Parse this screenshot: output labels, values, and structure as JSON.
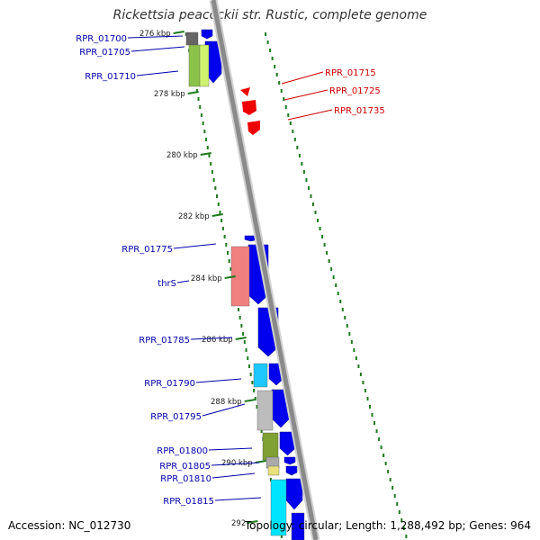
{
  "title": "Rickettsia peacockii str. Rustic, complete genome",
  "accession": "Accession: NC_012730",
  "summary": "Topology: circular; Length: 1,288,492 bp; Genes: 964",
  "colors": {
    "backbone": "#8a8a8a",
    "forward": "#0000ee",
    "reverse": "#ee0000",
    "label_forward": "#0000aa",
    "label_reverse": "#cc0000",
    "tick": "#1e7a1e"
  },
  "scale_ticks": [
    "276 kbp",
    "278 kbp",
    "280 kbp",
    "282 kbp",
    "284 kbp",
    "286 kbp",
    "288 kbp",
    "290 kbp",
    "292"
  ],
  "gene_labels_forward": [
    "RPR_01700",
    "RPR_01705",
    "RPR_01710",
    "RPR_01775",
    "thrS",
    "RPR_01785",
    "RPR_01790",
    "RPR_01795",
    "RPR_01800",
    "RPR_01805",
    "RPR_01810",
    "RPR_01815"
  ],
  "gene_labels_reverse": [
    "RPR_01715",
    "RPR_01725",
    "RPR_01735"
  ]
}
